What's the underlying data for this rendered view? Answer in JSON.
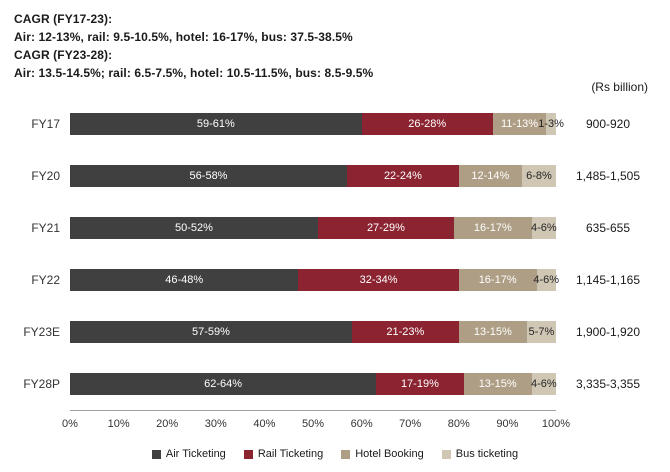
{
  "header": {
    "line1": "CAGR (FY17-23):",
    "line2": "Air: 12-13%, rail: 9.5-10.5%, hotel: 16-17%, bus: 37.5-38.5%",
    "line3": "CAGR (FY23-28):",
    "line4": "Air: 13.5-14.5%; rail: 6.5-7.5%, hotel: 10.5-11.5%, bus: 8.5-9.5%"
  },
  "unit_label": "(Rs billion)",
  "chart_data": {
    "type": "bar",
    "orientation": "horizontal",
    "stacked": true,
    "grid": false,
    "legend_position": "bottom",
    "xlim": [
      0,
      100
    ],
    "x_ticks": [
      "0%",
      "10%",
      "20%",
      "30%",
      "40%",
      "50%",
      "60%",
      "70%",
      "80%",
      "90%",
      "100%"
    ],
    "categories": [
      "FY17",
      "FY20",
      "FY21",
      "FY22",
      "FY23E",
      "FY28P"
    ],
    "series": [
      {
        "name": "Air Ticketing",
        "color": "#404040",
        "label_color": "#ffffff",
        "labels": [
          "59-61%",
          "56-58%",
          "50-52%",
          "46-48%",
          "57-59%",
          "62-64%"
        ],
        "values": [
          60,
          57,
          51,
          47,
          58,
          63
        ]
      },
      {
        "name": "Rail Ticketing",
        "color": "#8B2331",
        "label_color": "#ffffff",
        "labels": [
          "26-28%",
          "22-24%",
          "27-29%",
          "32-34%",
          "21-23%",
          "17-19%"
        ],
        "values": [
          27,
          23,
          28,
          33,
          22,
          18
        ]
      },
      {
        "name": "Hotel Booking",
        "color": "#AE9E85",
        "label_color": "#ffffff",
        "labels": [
          "11-13%",
          "12-14%",
          "16-17%",
          "16-17%",
          "13-15%",
          "13-15%"
        ],
        "values": [
          11,
          13,
          16,
          16,
          14,
          14
        ]
      },
      {
        "name": "Bus ticketing",
        "color": "#CFC6B3",
        "label_color": "#262626",
        "labels": [
          "1-3%",
          "6-8%",
          "4-6%",
          "4-6%",
          "5-7%",
          "4-6%"
        ],
        "values": [
          2,
          7,
          5,
          4,
          6,
          5
        ]
      }
    ],
    "totals": [
      "900-920",
      "1,485-1,505",
      "635-655",
      "1,145-1,165",
      "1,900-1,920",
      "3,335-3,355"
    ]
  }
}
